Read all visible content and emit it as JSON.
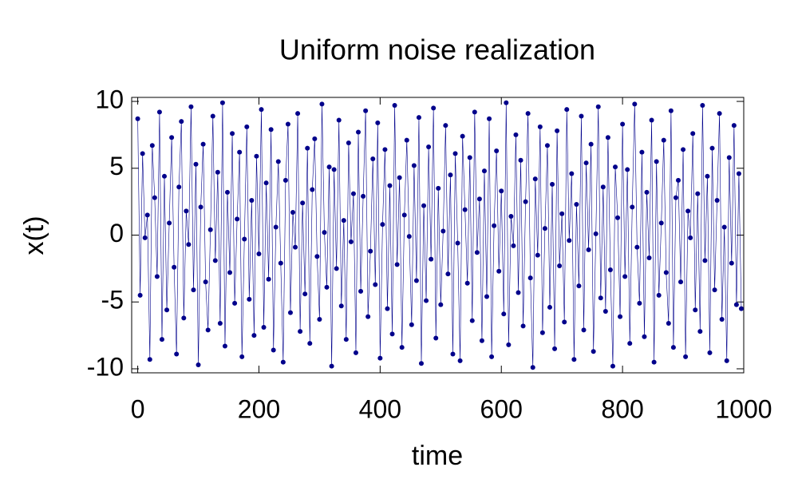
{
  "chart_data": {
    "type": "line",
    "title": "Uniform noise realization",
    "x_label": "time",
    "y_label": "x(t)",
    "color": "#00008b",
    "markers": true,
    "xlim": [
      -10,
      1000
    ],
    "xticks": [
      0,
      200,
      400,
      600,
      800,
      1000
    ],
    "ylim": [
      -10.3,
      10.3
    ],
    "yticks": [
      -10,
      -5,
      0,
      5,
      10
    ],
    "x": [
      0,
      4,
      8,
      12,
      16,
      20,
      24,
      28,
      32,
      36,
      40,
      44,
      48,
      52,
      56,
      60,
      64,
      68,
      72,
      76,
      80,
      84,
      88,
      92,
      96,
      100,
      104,
      108,
      112,
      116,
      120,
      124,
      128,
      132,
      136,
      140,
      144,
      148,
      152,
      156,
      160,
      164,
      168,
      172,
      176,
      180,
      184,
      188,
      192,
      196,
      200,
      204,
      208,
      212,
      216,
      220,
      224,
      228,
      232,
      236,
      240,
      244,
      248,
      252,
      256,
      260,
      264,
      268,
      272,
      276,
      280,
      284,
      288,
      292,
      296,
      300,
      304,
      308,
      312,
      316,
      320,
      324,
      328,
      332,
      336,
      340,
      344,
      348,
      352,
      356,
      360,
      364,
      368,
      372,
      376,
      380,
      384,
      388,
      392,
      396,
      400,
      404,
      408,
      412,
      416,
      420,
      424,
      428,
      432,
      436,
      440,
      444,
      448,
      452,
      456,
      460,
      464,
      468,
      472,
      476,
      480,
      484,
      488,
      492,
      496,
      500,
      504,
      508,
      512,
      516,
      520,
      524,
      528,
      532,
      536,
      540,
      544,
      548,
      552,
      556,
      560,
      564,
      568,
      572,
      576,
      580,
      584,
      588,
      592,
      596,
      600,
      604,
      608,
      612,
      616,
      620,
      624,
      628,
      632,
      636,
      640,
      644,
      648,
      652,
      656,
      660,
      664,
      668,
      672,
      676,
      680,
      684,
      688,
      692,
      696,
      700,
      704,
      708,
      712,
      716,
      720,
      724,
      728,
      732,
      736,
      740,
      744,
      748,
      752,
      756,
      760,
      764,
      768,
      772,
      776,
      780,
      784,
      788,
      792,
      796,
      800,
      804,
      808,
      812,
      816,
      820,
      824,
      828,
      832,
      836,
      840,
      844,
      848,
      852,
      856,
      860,
      864,
      868,
      872,
      876,
      880,
      884,
      888,
      892,
      896,
      900,
      904,
      908,
      912,
      916,
      920,
      924,
      928,
      932,
      936,
      940,
      944,
      948,
      952,
      956,
      960,
      964,
      968,
      972,
      976,
      980,
      984,
      988,
      992,
      996
    ],
    "values": [
      8.7,
      -4.5,
      6.1,
      -0.2,
      1.5,
      -9.3,
      6.7,
      2.8,
      -3.1,
      9.2,
      -7.8,
      4.4,
      -5.6,
      0.9,
      7.3,
      -2.4,
      -8.9,
      3.6,
      8.5,
      -6.2,
      1.8,
      -0.7,
      9.6,
      -4.1,
      5.3,
      -9.7,
      2.1,
      6.8,
      -3.5,
      -7.1,
      0.4,
      8.9,
      -1.9,
      4.7,
      -6.6,
      9.9,
      -8.3,
      3.2,
      -2.8,
      7.6,
      -5.1,
      1.2,
      6.2,
      -9.1,
      -0.3,
      8.1,
      -4.8,
      2.6,
      -7.5,
      5.9,
      -1.4,
      9.4,
      -6.9,
      3.9,
      -3.3,
      7.9,
      -8.6,
      0.6,
      5.5,
      -2.1,
      -9.5,
      4.1,
      8.3,
      -5.8,
      1.7,
      -0.9,
      9.1,
      -7.2,
      2.4,
      -4.4,
      6.5,
      -8.1,
      3.4,
      7.2,
      -1.6,
      -6.3,
      9.8,
      0.2,
      -3.9,
      5.1,
      -9.8,
      4.9,
      -2.5,
      8.6,
      -5.3,
      1.1,
      -7.8,
      6.9,
      -0.5,
      3.1,
      -8.8,
      7.7,
      -4.2,
      2.9,
      9.3,
      -6.1,
      -1.2,
      5.7,
      -3.7,
      8.4,
      -9.2,
      0.8,
      6.4,
      -5.5,
      3.7,
      -7.4,
      9.7,
      -2.2,
      4.3,
      -8.4,
      1.5,
      7.1,
      -0.1,
      -6.7,
      5.2,
      -3.4,
      8.8,
      -9.6,
      2.2,
      -4.9,
      6.6,
      -1.8,
      9.5,
      -7.7,
      3.5,
      -5.2,
      0.3,
      8.2,
      -2.9,
      4.5,
      -8.9,
      6.1,
      -0.6,
      -9.4,
      7.4,
      1.9,
      -3.6,
      5.8,
      -6.4,
      9.2,
      -1.3,
      2.7,
      -7.9,
      4.8,
      -4.6,
      8.7,
      -9.1,
      0.7,
      6.3,
      -2.7,
      3.3,
      -5.9,
      9.9,
      -8.2,
      1.4,
      -0.8,
      7.5,
      -4.3,
      5.6,
      -6.8,
      2.5,
      9.1,
      -3.2,
      -9.9,
      4.2,
      -1.5,
      8.1,
      -7.3,
      0.5,
      6.7,
      -5.4,
      3.8,
      -8.5,
      7.8,
      -2.3,
      1.6,
      -6.5,
      9.4,
      -0.4,
      4.6,
      -9.3,
      2.3,
      -3.8,
      8.9,
      -7.1,
      5.4,
      -1.1,
      6.8,
      -8.7,
      0.1,
      9.6,
      -4.7,
      3.6,
      -5.7,
      7.3,
      -2.6,
      -9.8,
      5.1,
      1.3,
      -6.1,
      8.3,
      -3.1,
      4.9,
      -8.1,
      2.1,
      9.8,
      -0.9,
      -5.1,
      6.2,
      -7.6,
      3.2,
      -1.7,
      8.6,
      -9.5,
      5.5,
      -4.5,
      0.9,
      7.1,
      -2.8,
      -6.6,
      9.3,
      -8.4,
      2.8,
      4.1,
      -3.5,
      6.4,
      -9.1,
      1.8,
      -0.2,
      7.6,
      -5.6,
      3.1,
      -7.2,
      9.7,
      -1.9,
      4.4,
      -8.8,
      6.5,
      -4.1,
      2.6,
      9.1,
      -6.3,
      0.6,
      -9.4,
      5.8,
      -2.1,
      8.2,
      -5.2,
      4.6,
      -5.5
    ]
  }
}
